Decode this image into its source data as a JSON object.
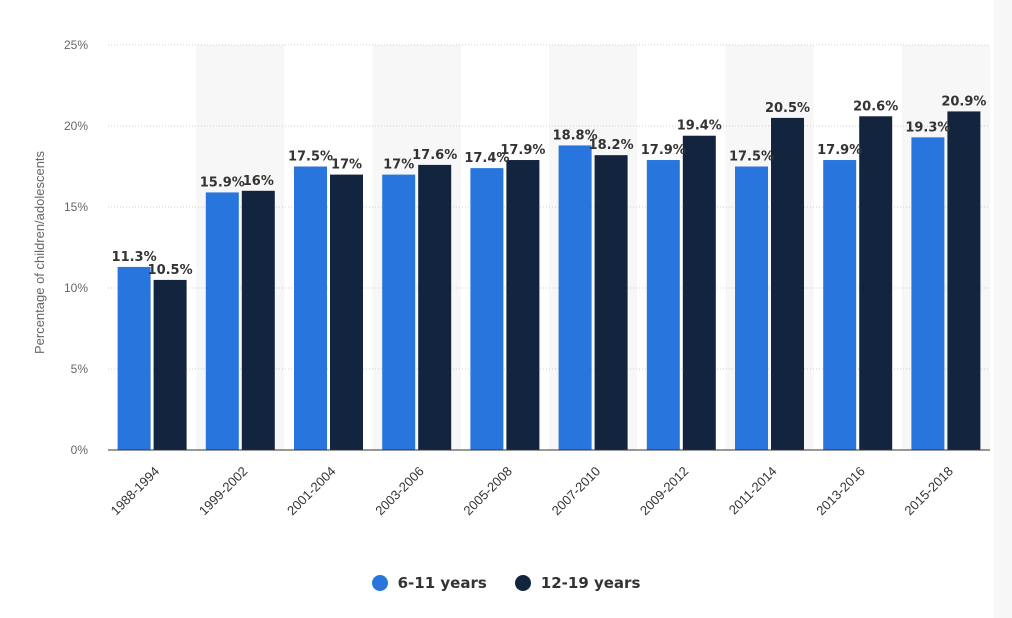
{
  "chart_data": {
    "type": "bar",
    "categories": [
      "1988-1994",
      "1999-2002",
      "2001-2004",
      "2003-2006",
      "2005-2008",
      "2007-2010",
      "2009-2012",
      "2011-2014",
      "2013-2016",
      "2015-2018"
    ],
    "series": [
      {
        "name": "6-11 years",
        "color": "#2876dd",
        "values": [
          11.3,
          15.9,
          17.5,
          17,
          17.4,
          18.8,
          17.9,
          17.5,
          17.9,
          19.3
        ],
        "labels": [
          "11.3%",
          "15.9%",
          "17.5%",
          "17%",
          "17.4%",
          "18.8%",
          "17.9%",
          "17.5%",
          "17.9%",
          "19.3%"
        ]
      },
      {
        "name": "12-19 years",
        "color": "#13253e",
        "values": [
          10.5,
          16,
          17,
          17.6,
          17.9,
          18.2,
          19.4,
          20.5,
          20.6,
          20.9
        ],
        "labels": [
          "10.5%",
          "16%",
          "17%",
          "17.6%",
          "17.9%",
          "18.2%",
          "19.4%",
          "20.5%",
          "20.6%",
          "20.9%"
        ]
      }
    ],
    "ylabel": "Percentage of children/adolescents",
    "ylim": [
      0,
      25
    ],
    "yticks": [
      0,
      5,
      10,
      15,
      20,
      25
    ],
    "ytick_labels": [
      "0%",
      "5%",
      "10%",
      "15%",
      "20%",
      "25%"
    ],
    "grid": true,
    "legend_position": "bottom-center"
  }
}
